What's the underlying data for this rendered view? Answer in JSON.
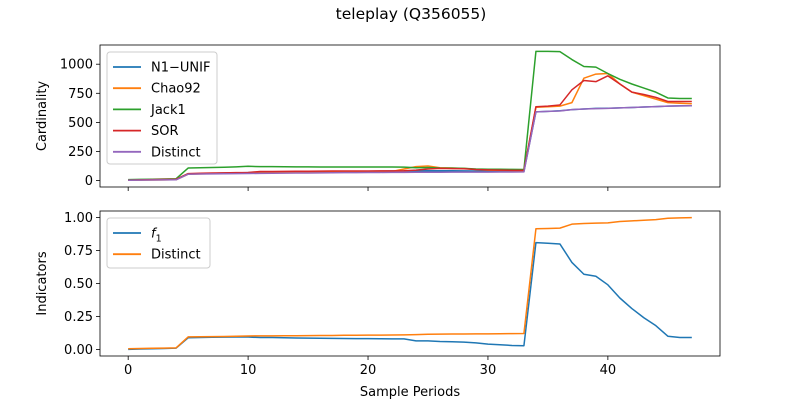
{
  "title": "teleplay (Q356055)",
  "chart_data": [
    {
      "type": "line",
      "ylabel": "Cardinality",
      "xlabel": "",
      "xlim": [
        -2.35,
        49.35
      ],
      "ylim": [
        -55,
        1165
      ],
      "xticks": [
        0,
        10,
        20,
        30,
        40
      ],
      "yticks": [
        0,
        250,
        500,
        750,
        1000
      ],
      "ytick_labels": [
        "0",
        "250",
        "500",
        "750",
        "1000"
      ],
      "legend_position": "upper-left",
      "x": [
        0,
        1,
        2,
        3,
        4,
        5,
        6,
        7,
        8,
        9,
        10,
        11,
        12,
        13,
        14,
        15,
        16,
        17,
        18,
        19,
        20,
        21,
        22,
        23,
        24,
        25,
        26,
        27,
        28,
        29,
        30,
        31,
        32,
        33,
        34,
        35,
        36,
        37,
        38,
        39,
        40,
        41,
        42,
        43,
        44,
        45,
        46,
        47
      ],
      "series": [
        {
          "name": "N1−UNIF",
          "color": "#1f77b4",
          "values": [
            5,
            6,
            7,
            8,
            10,
            57,
            60,
            62,
            65,
            66,
            68,
            72,
            73,
            74,
            75,
            76,
            77,
            78,
            79,
            80,
            80,
            81,
            82,
            83,
            84,
            85,
            85,
            85,
            84,
            83,
            82,
            82,
            82,
            80,
            590,
            595,
            600,
            610,
            615,
            620,
            622,
            625,
            628,
            632,
            636,
            640,
            642,
            643
          ]
        },
        {
          "name": "Chao92",
          "color": "#ff7f0e",
          "values": [
            3,
            4,
            5,
            6,
            8,
            55,
            58,
            60,
            62,
            63,
            65,
            66,
            67,
            68,
            69,
            70,
            71,
            72,
            73,
            74,
            75,
            76,
            78,
            100,
            120,
            125,
            110,
            108,
            105,
            95,
            90,
            88,
            86,
            85,
            630,
            635,
            640,
            670,
            880,
            915,
            920,
            830,
            760,
            730,
            700,
            670,
            665,
            660
          ]
        },
        {
          "name": "Jack1",
          "color": "#2ca02c",
          "values": [
            8,
            10,
            12,
            14,
            16,
            108,
            110,
            112,
            115,
            118,
            123,
            120,
            120,
            119,
            118,
            118,
            117,
            117,
            117,
            117,
            117,
            117,
            117,
            116,
            110,
            112,
            108,
            107,
            105,
            100,
            98,
            97,
            96,
            95,
            1110,
            1110,
            1108,
            1040,
            980,
            975,
            920,
            870,
            830,
            795,
            760,
            710,
            705,
            705
          ]
        },
        {
          "name": "SOR",
          "color": "#d62728",
          "values": [
            4,
            6,
            8,
            10,
            12,
            60,
            63,
            65,
            66,
            68,
            70,
            78,
            78,
            79,
            80,
            80,
            81,
            82,
            82,
            83,
            83,
            84,
            84,
            85,
            90,
            100,
            105,
            103,
            102,
            95,
            92,
            90,
            88,
            88,
            635,
            640,
            650,
            780,
            860,
            850,
            900,
            830,
            760,
            740,
            715,
            680,
            680,
            680
          ]
        },
        {
          "name": "Distinct",
          "color": "#9467bd",
          "values": [
            3,
            4,
            5,
            6,
            7,
            55,
            57,
            58,
            59,
            60,
            61,
            62,
            63,
            64,
            65,
            65,
            66,
            67,
            68,
            69,
            70,
            70,
            71,
            71,
            72,
            72,
            72,
            73,
            73,
            73,
            73,
            74,
            74,
            75,
            590,
            595,
            598,
            610,
            615,
            618,
            620,
            625,
            628,
            632,
            636,
            640,
            642,
            643
          ]
        }
      ]
    },
    {
      "type": "line",
      "ylabel": "Indicators",
      "xlabel": "Sample Periods",
      "xlim": [
        -2.35,
        49.35
      ],
      "ylim": [
        -0.05,
        1.05
      ],
      "xticks": [
        0,
        10,
        20,
        30,
        40
      ],
      "xtick_labels": [
        "0",
        "10",
        "20",
        "30",
        "40"
      ],
      "yticks": [
        0,
        0.25,
        0.5,
        0.75,
        1.0
      ],
      "ytick_labels": [
        "0.00",
        "0.25",
        "0.50",
        "0.75",
        "1.00"
      ],
      "legend_position": "upper-left",
      "x": [
        0,
        1,
        2,
        3,
        4,
        5,
        6,
        7,
        8,
        9,
        10,
        11,
        12,
        13,
        14,
        15,
        16,
        17,
        18,
        19,
        20,
        21,
        22,
        23,
        24,
        25,
        26,
        27,
        28,
        29,
        30,
        31,
        32,
        33,
        34,
        35,
        36,
        37,
        38,
        39,
        40,
        41,
        42,
        43,
        44,
        45,
        46,
        47
      ],
      "series": [
        {
          "name": "f_1",
          "color": "#1f77b4",
          "values": [
            0.0,
            0.003,
            0.005,
            0.007,
            0.01,
            0.088,
            0.09,
            0.092,
            0.093,
            0.094,
            0.094,
            0.09,
            0.09,
            0.088,
            0.087,
            0.086,
            0.085,
            0.084,
            0.083,
            0.082,
            0.082,
            0.081,
            0.08,
            0.08,
            0.065,
            0.065,
            0.06,
            0.058,
            0.055,
            0.05,
            0.04,
            0.035,
            0.03,
            0.028,
            0.81,
            0.805,
            0.8,
            0.66,
            0.57,
            0.555,
            0.49,
            0.39,
            0.31,
            0.24,
            0.18,
            0.1,
            0.09,
            0.09
          ]
        },
        {
          "name": "Distinct",
          "color": "#ff7f0e",
          "values": [
            0.005,
            0.007,
            0.009,
            0.01,
            0.012,
            0.095,
            0.096,
            0.097,
            0.098,
            0.1,
            0.102,
            0.103,
            0.103,
            0.104,
            0.104,
            0.105,
            0.106,
            0.106,
            0.107,
            0.107,
            0.108,
            0.108,
            0.109,
            0.11,
            0.112,
            0.115,
            0.116,
            0.117,
            0.117,
            0.118,
            0.118,
            0.119,
            0.12,
            0.121,
            0.915,
            0.917,
            0.92,
            0.95,
            0.955,
            0.958,
            0.96,
            0.97,
            0.975,
            0.98,
            0.985,
            0.995,
            0.998,
            1.0
          ]
        }
      ]
    }
  ]
}
